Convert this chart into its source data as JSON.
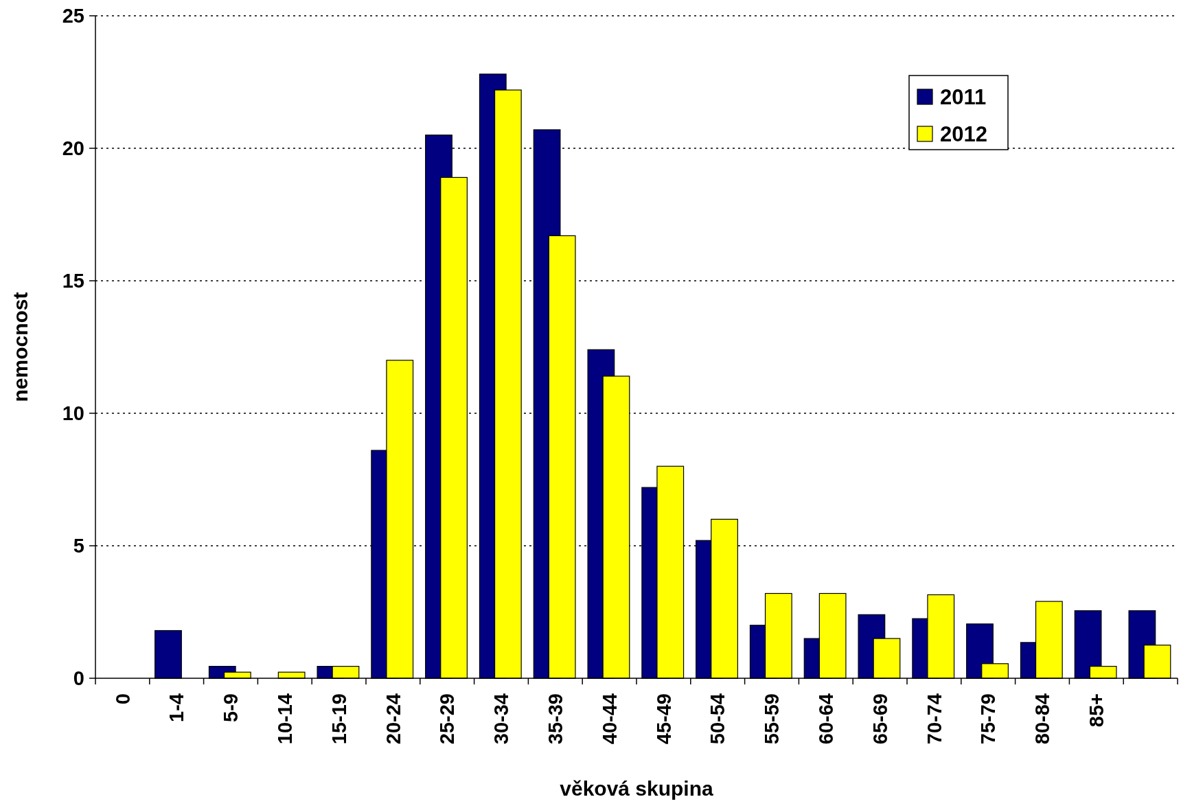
{
  "chart_data": {
    "type": "bar",
    "xlabel": "věková skupina",
    "ylabel": "nemocnost",
    "categories": [
      "0",
      "1-4",
      "5-9",
      "10-14",
      "15-19",
      "20-24",
      "25-29",
      "30-34",
      "35-39",
      "40-44",
      "45-49",
      "50-54",
      "55-59",
      "60-64",
      "65-69",
      "70-74",
      "75-79",
      "80-84",
      "85+",
      null
    ],
    "series": [
      {
        "name": "2011",
        "color": "#000080",
        "values": [
          0,
          1.8,
          0.45,
          0,
          0.45,
          8.6,
          20.5,
          22.8,
          20.7,
          12.4,
          7.2,
          5.2,
          2.0,
          1.5,
          2.4,
          2.25,
          2.05,
          1.35,
          2.55,
          2.55
        ]
      },
      {
        "name": "2012",
        "color": "#ffff00",
        "values": [
          0,
          0,
          0.23,
          0.23,
          0.45,
          12.0,
          18.9,
          22.2,
          16.7,
          11.4,
          8.0,
          6.0,
          3.2,
          3.2,
          1.5,
          3.15,
          0.55,
          2.9,
          0.45,
          1.25
        ]
      }
    ],
    "ylim": [
      0,
      25
    ],
    "yticks": [
      0,
      5,
      10,
      15,
      20,
      25
    ],
    "grid": "y",
    "legend": "top right"
  }
}
